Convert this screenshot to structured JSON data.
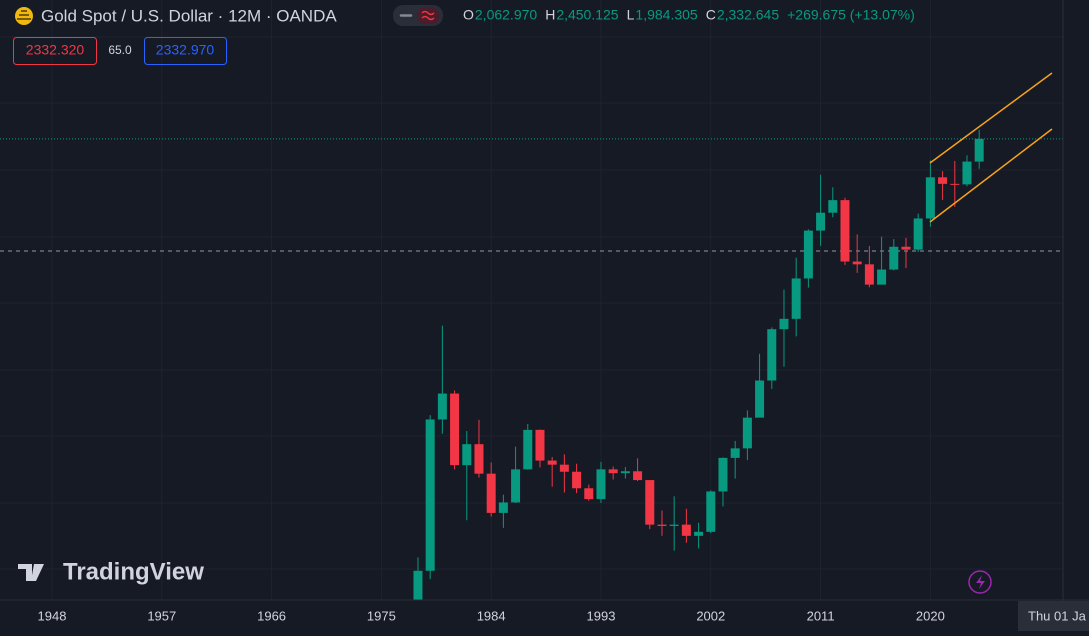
{
  "header": {
    "title": "Gold Spot / U.S. Dollar · 12M · OANDA",
    "ohlc": [
      {
        "key": "O",
        "value": "2,062.970"
      },
      {
        "key": "H",
        "value": "2,450.125"
      },
      {
        "key": "L",
        "value": "1,984.305"
      },
      {
        "key": "C",
        "value": "2,332.645"
      }
    ],
    "change": "+269.675 (+13.07%)"
  },
  "price_boxes": {
    "bid": "2332.320",
    "spread": "65.0",
    "ask": "2332.970"
  },
  "watermark": "TradingView",
  "crosshair_label": "Thu 01 Ja",
  "chart_data": {
    "type": "candlestick",
    "log_scale": true,
    "up_color": "#089981",
    "down_color": "#f23645",
    "x": [
      1978,
      1979,
      1980,
      1981,
      1982,
      1983,
      1984,
      1985,
      1986,
      1987,
      1988,
      1989,
      1990,
      1991,
      1992,
      1993,
      1994,
      1995,
      1996,
      1997,
      1998,
      1999,
      2000,
      2001,
      2002,
      2003,
      2004,
      2005,
      2006,
      2007,
      2008,
      2009,
      2010,
      2011,
      2012,
      2013,
      2014,
      2015,
      2016,
      2017,
      2018,
      2019,
      2020,
      2021,
      2022,
      2023,
      2024
    ],
    "open": [
      165,
      226,
      512,
      589,
      400,
      448,
      382,
      309,
      327,
      391,
      484,
      410,
      401,
      386,
      353,
      333,
      391,
      383,
      387,
      369,
      290,
      288,
      290,
      273,
      279,
      347,
      416,
      438,
      517,
      632,
      834,
      882,
      1097,
      1421,
      1565,
      1675,
      1202,
      1184,
      1061,
      1151,
      1302,
      1282,
      1517,
      1895,
      1829,
      1824,
      2062.97
    ],
    "high": [
      243,
      524,
      850,
      599,
      481,
      511,
      406,
      341,
      442,
      500,
      485,
      418,
      424,
      403,
      360,
      407,
      397,
      396,
      415,
      368,
      313,
      338,
      316,
      293,
      349,
      417,
      456,
      538,
      730,
      842,
      1033,
      1227,
      1431,
      1921,
      1796,
      1697,
      1392,
      1307,
      1375,
      1357,
      1366,
      1557,
      2075,
      1959,
      2070,
      2135,
      2450.125
    ],
    "low": [
      165,
      216,
      474,
      391,
      297,
      374,
      303,
      285,
      326,
      390,
      395,
      356,
      345,
      344,
      330,
      326,
      370,
      372,
      367,
      283,
      273,
      252,
      263,
      255,
      277,
      320,
      372,
      411,
      518,
      604,
      681,
      802,
      1044,
      1308,
      1527,
      1180,
      1131,
      1046,
      1061,
      1146,
      1160,
      1266,
      1451,
      1677,
      1615,
      1805,
      1984.305
    ],
    "close": [
      226,
      512,
      589,
      400,
      448,
      382,
      309,
      327,
      391,
      484,
      410,
      401,
      386,
      353,
      333,
      391,
      383,
      387,
      369,
      290,
      288,
      290,
      273,
      279,
      347,
      416,
      438,
      517,
      632,
      834,
      882,
      1097,
      1421,
      1565,
      1675,
      1202,
      1184,
      1061,
      1151,
      1302,
      1282,
      1517,
      1895,
      1829,
      1824,
      2063,
      2332.645
    ],
    "xlim": [
      1943.74,
      2030.87
    ],
    "xticks": [
      1948,
      1957,
      1966,
      1975,
      1984,
      1993,
      2002,
      2011,
      2020
    ],
    "ylim": [
      193,
      4940
    ],
    "grid": true
  }
}
